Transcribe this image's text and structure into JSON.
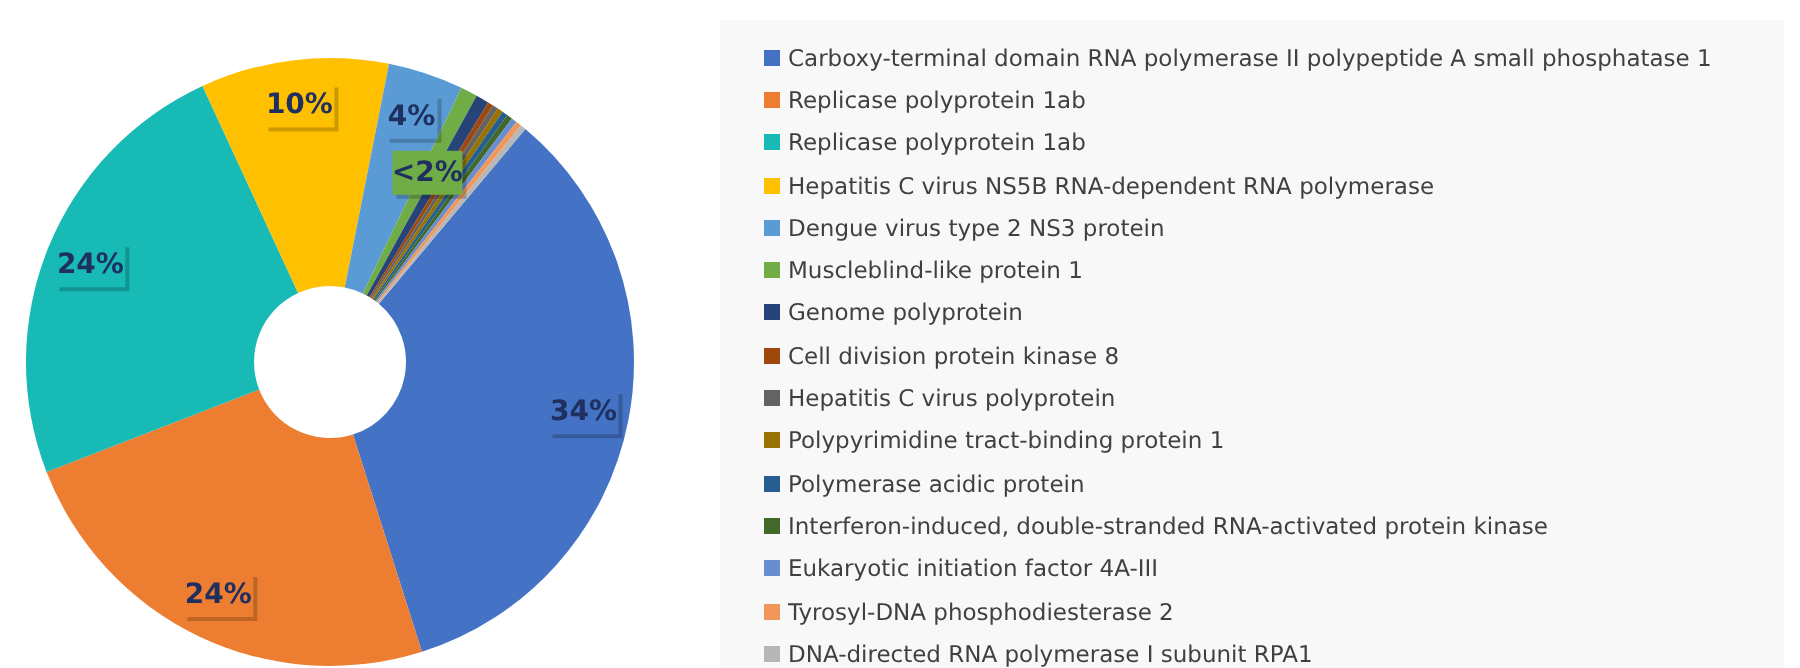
{
  "chart_data": {
    "type": "donut",
    "categories": [
      "Carboxy-terminal domain RNA polymerase II polypeptide A small phosphatase 1",
      "Replicase polyprotein 1ab",
      "Replicase polyprotein 1ab",
      "Hepatitis C virus NS5B RNA-dependent RNA polymerase",
      "Dengue virus type 2 NS3 protein",
      "Muscleblind-like protein 1",
      "Genome polyprotein",
      "Cell division protein kinase 8",
      "Hepatitis C virus polyprotein",
      "Polypyrimidine tract-binding protein 1",
      "Polymerase acidic protein",
      "Interferon-induced, double-stranded RNA-activated protein kinase",
      "Eukaryotic initiation factor 4A-III",
      "Tyrosyl-DNA phosphodiesterase 2",
      "DNA-directed RNA polymerase I subunit RPA1"
    ],
    "values": [
      34,
      24,
      24,
      10,
      4,
      0.9,
      0.7,
      0.3,
      0.3,
      0.3,
      0.3,
      0.3,
      0.3,
      0.3,
      0.3
    ],
    "colors": [
      "#4472c4",
      "#ed7d31",
      "#17bab5",
      "#ffc000",
      "#5b9bd5",
      "#70ad47",
      "#264478",
      "#9e480e",
      "#636363",
      "#997300",
      "#255e91",
      "#43682b",
      "#698ed0",
      "#f1975a",
      "#b7b7b7"
    ],
    "value_labels": [
      "34%",
      "24%",
      "24%",
      "10%",
      "4%",
      "<2%",
      null,
      null,
      null,
      null,
      null,
      null,
      null,
      null,
      null
    ],
    "legend": "right"
  }
}
